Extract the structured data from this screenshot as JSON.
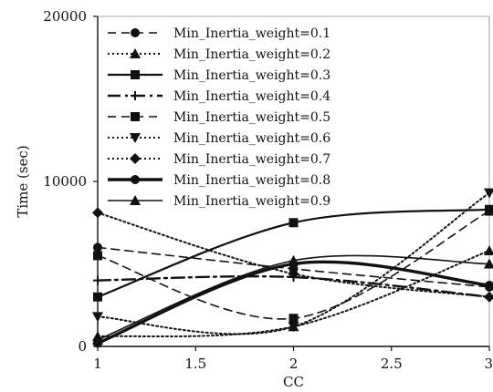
{
  "chart_data": {
    "type": "line",
    "title": "",
    "xlabel": "CC",
    "ylabel": "Time (sec)",
    "xlim": [
      1,
      3
    ],
    "ylim": [
      0,
      20000
    ],
    "xticks": [
      1,
      1.5,
      2,
      2.5,
      3
    ],
    "xtick_labels": [
      "1",
      "1.5",
      "2",
      "2.5",
      "3"
    ],
    "yticks": [
      0,
      10000,
      20000
    ],
    "ytick_labels": [
      "0",
      "10000",
      "20000"
    ],
    "grid": false,
    "legend": "top-left, inside",
    "x": [
      1,
      2,
      3
    ],
    "series": [
      {
        "name": "Min_Inertia_weight=0.1",
        "values": [
          6000,
          4700,
          3600
        ],
        "dash": "dash",
        "marker": "circle",
        "width": 1.6,
        "color": "#111111"
      },
      {
        "name": "Min_Inertia_weight=0.2",
        "values": [
          600,
          1200,
          5800
        ],
        "dash": "dot",
        "marker": "triangle",
        "width": 2.0,
        "color": "#111111"
      },
      {
        "name": "Min_Inertia_weight=0.3",
        "values": [
          3000,
          7500,
          8300
        ],
        "dash": "solid",
        "marker": "square",
        "width": 2.2,
        "color": "#111111"
      },
      {
        "name": "Min_Inertia_weight=0.4",
        "values": [
          4000,
          4200,
          3000
        ],
        "dash": "dashdot",
        "marker": "plus",
        "width": 2.4,
        "color": "#111111"
      },
      {
        "name": "Min_Inertia_weight=0.5",
        "values": [
          5500,
          1700,
          8200
        ],
        "dash": "dash",
        "marker": "square",
        "width": 1.6,
        "color": "#111111"
      },
      {
        "name": "Min_Inertia_weight=0.6",
        "values": [
          1800,
          1200,
          9300
        ],
        "dash": "dot",
        "marker": "tri-down",
        "width": 2.0,
        "color": "#111111"
      },
      {
        "name": "Min_Inertia_weight=0.7",
        "values": [
          8100,
          4400,
          3000
        ],
        "dash": "dot",
        "marker": "diamond",
        "width": 2.0,
        "color": "#111111"
      },
      {
        "name": "Min_Inertia_weight=0.8",
        "values": [
          200,
          5000,
          3700
        ],
        "dash": "solid",
        "marker": "circle",
        "width": 3.4,
        "color": "#111111"
      },
      {
        "name": "Min_Inertia_weight=0.9",
        "values": [
          400,
          5200,
          5000
        ],
        "dash": "solid",
        "marker": "triangle",
        "width": 1.6,
        "color": "#111111"
      }
    ]
  }
}
